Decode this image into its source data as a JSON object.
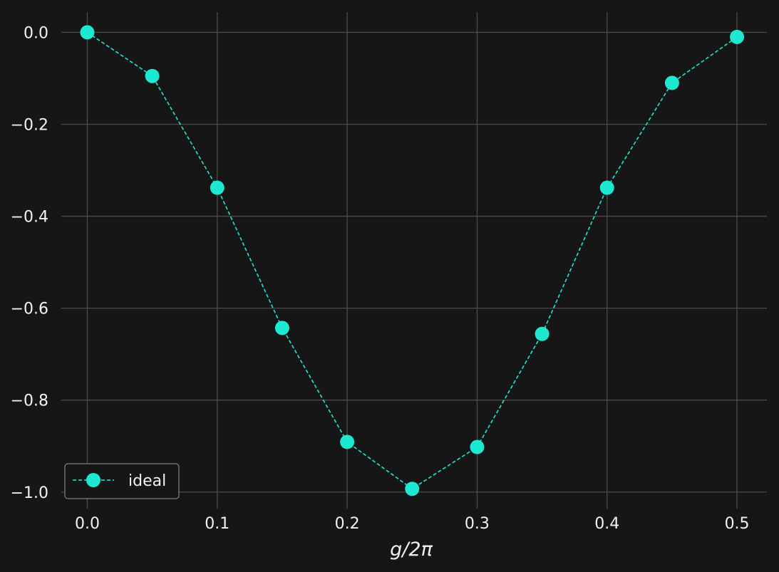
{
  "chart_data": {
    "type": "line",
    "xlabel": "g/2π",
    "ylabel": "",
    "xlim": [
      -0.02,
      0.523
    ],
    "ylim": [
      -1.036,
      0.044
    ],
    "grid": true,
    "legend_position": "lower-left",
    "x_ticks": [
      {
        "value": 0.0,
        "label": "0.0"
      },
      {
        "value": 0.1,
        "label": "0.1"
      },
      {
        "value": 0.2,
        "label": "0.2"
      },
      {
        "value": 0.3,
        "label": "0.3"
      },
      {
        "value": 0.4,
        "label": "0.4"
      },
      {
        "value": 0.5,
        "label": "0.5"
      }
    ],
    "y_ticks": [
      {
        "value": 0.0,
        "label": "0.0"
      },
      {
        "value": -0.2,
        "label": "−0.2"
      },
      {
        "value": -0.4,
        "label": "−0.4"
      },
      {
        "value": -0.6,
        "label": "−0.6"
      },
      {
        "value": -0.8,
        "label": "−0.8"
      },
      {
        "value": -1.0,
        "label": "−1.0"
      }
    ],
    "series": [
      {
        "name": "ideal",
        "color": "#1de9d2",
        "line_style": "dashed",
        "marker": "circle",
        "x": [
          0.0,
          0.05,
          0.1,
          0.15,
          0.2,
          0.25,
          0.3,
          0.35,
          0.4,
          0.45,
          0.5
        ],
        "y": [
          0.0,
          -0.095,
          -0.338,
          -0.643,
          -0.891,
          -0.993,
          -0.902,
          -0.656,
          -0.338,
          -0.11,
          -0.01
        ]
      }
    ]
  },
  "colors": {
    "background": "#161616",
    "grid": "#4a4a4a",
    "text": "#f2f2f2"
  }
}
